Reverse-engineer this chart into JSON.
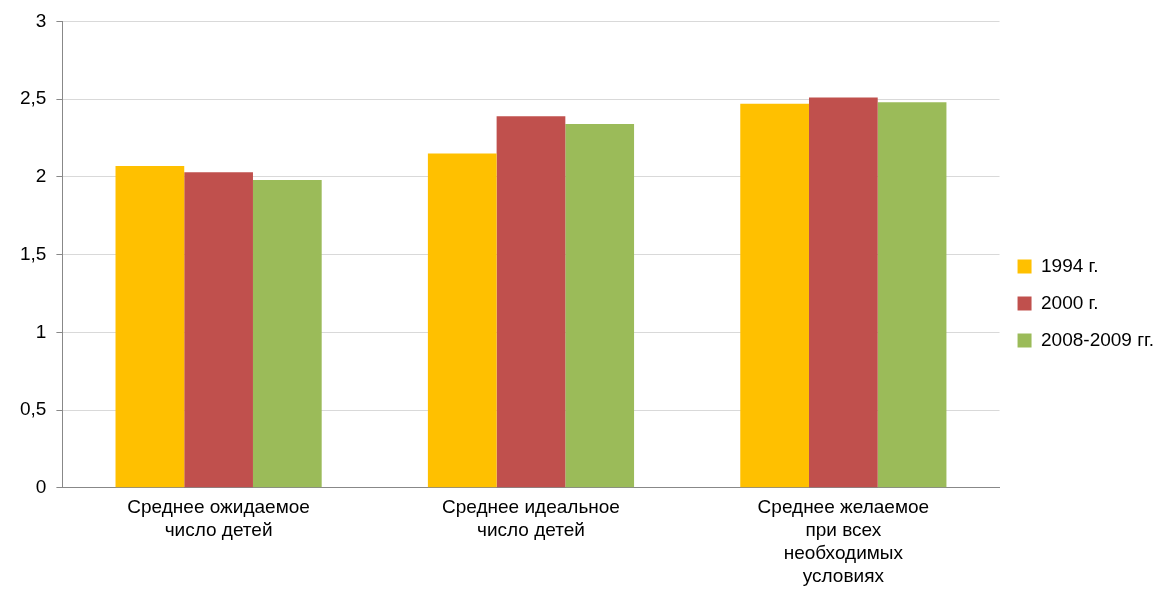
{
  "chart_data": {
    "type": "bar",
    "categories": [
      "Среднее ожидаемое число детей",
      "Среднее идеальное число детей",
      "Среднее желаемое при всех необходимых условиях"
    ],
    "series": [
      {
        "name": "1994 г.",
        "color": "#ffc000",
        "values": [
          2.07,
          2.15,
          2.47
        ]
      },
      {
        "name": "2000 г.",
        "color": "#c0504d",
        "values": [
          2.03,
          2.39,
          2.51
        ]
      },
      {
        "name": "2008-2009 гг.",
        "color": "#9bbb59",
        "values": [
          1.98,
          2.34,
          2.48
        ]
      }
    ],
    "ylim": [
      0,
      3
    ],
    "yticks": [
      0,
      {
        "value": 0.5,
        "label": "0,5"
      },
      1,
      {
        "value": 1.5,
        "label": "1,5"
      },
      2,
      {
        "value": 2.5,
        "label": "2,5"
      },
      3
    ],
    "grid": "y",
    "legend": "right"
  }
}
